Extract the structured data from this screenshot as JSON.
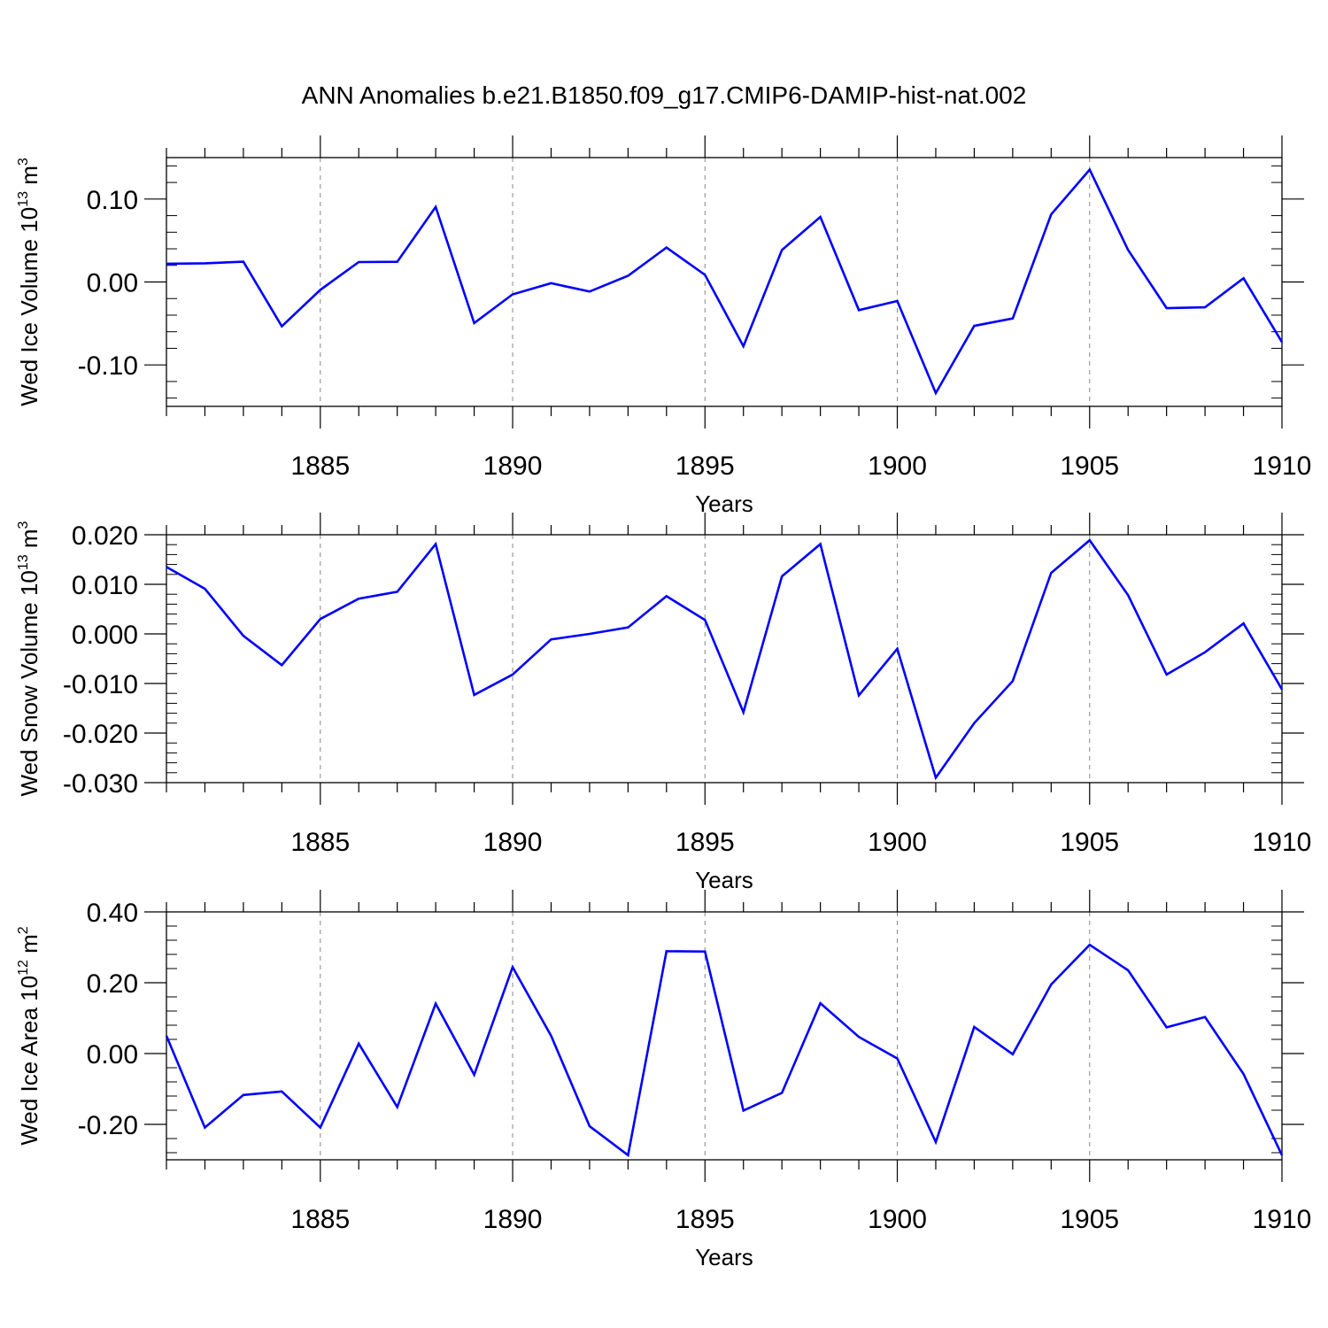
{
  "title": "ANN Anomalies b.e21.B1850.f09_g17.CMIP6-DAMIP-hist-nat.002",
  "line_color": "#0000ff",
  "chart_data": [
    {
      "type": "line",
      "ylabel_main": "Wed Ice Volume 10",
      "ylabel_exp": "13",
      "ylabel_unit": " m",
      "ylabel_unit_exp": "3",
      "xlabel": "Years",
      "xlim": [
        1881,
        1910
      ],
      "ylim": [
        -0.15,
        0.15
      ],
      "yticks": [
        -0.1,
        0.0,
        0.1
      ],
      "ytick_labels": [
        "-0.10",
        "0.00",
        "0.10"
      ],
      "xticks": [
        1885,
        1890,
        1895,
        1900,
        1905,
        1910
      ],
      "xtick_labels": [
        "1885",
        "1890",
        "1895",
        "1900",
        "1905",
        "1910"
      ],
      "x": [
        1881,
        1882,
        1883,
        1884,
        1885,
        1886,
        1887,
        1888,
        1889,
        1890,
        1891,
        1892,
        1893,
        1894,
        1895,
        1896,
        1897,
        1898,
        1899,
        1900,
        1901,
        1902,
        1903,
        1904,
        1905,
        1906,
        1907,
        1908,
        1909,
        1910
      ],
      "values": [
        0.022,
        0.0225,
        0.0245,
        -0.0535,
        -0.0095,
        0.024,
        0.0243,
        0.0905,
        -0.0495,
        -0.015,
        -0.0015,
        -0.0115,
        0.0075,
        0.0415,
        0.0085,
        -0.0775,
        0.0385,
        0.0785,
        -0.034,
        -0.023,
        -0.134,
        -0.053,
        -0.044,
        0.0815,
        0.1355,
        0.0385,
        -0.0315,
        -0.0305,
        0.0045,
        -0.0725
      ]
    },
    {
      "type": "line",
      "ylabel_main": "Wed Snow Volume 10",
      "ylabel_exp": "13",
      "ylabel_unit": " m",
      "ylabel_unit_exp": "3",
      "xlabel": "Years",
      "xlim": [
        1881,
        1910
      ],
      "ylim": [
        -0.03,
        0.02
      ],
      "yticks": [
        -0.03,
        -0.02,
        -0.01,
        0.0,
        0.01,
        0.02
      ],
      "ytick_labels": [
        "-0.030",
        "-0.020",
        "-0.010",
        "0.000",
        "0.010",
        "0.020"
      ],
      "xticks": [
        1885,
        1890,
        1895,
        1900,
        1905,
        1910
      ],
      "xtick_labels": [
        "1885",
        "1890",
        "1895",
        "1900",
        "1905",
        "1910"
      ],
      "x": [
        1881,
        1882,
        1883,
        1884,
        1885,
        1886,
        1887,
        1888,
        1889,
        1890,
        1891,
        1892,
        1893,
        1894,
        1895,
        1896,
        1897,
        1898,
        1899,
        1900,
        1901,
        1902,
        1903,
        1904,
        1905,
        1906,
        1907,
        1908,
        1909,
        1910
      ],
      "values": [
        0.0135,
        0.0091,
        -0.0004,
        -0.0063,
        0.003,
        0.0071,
        0.0085,
        0.0181,
        -0.0123,
        -0.0082,
        -0.0011,
        0.0,
        0.0013,
        0.0076,
        0.0028,
        -0.0158,
        0.0116,
        0.0181,
        -0.0124,
        -0.003,
        -0.029,
        -0.018,
        -0.0095,
        0.0123,
        0.0189,
        0.0078,
        -0.0082,
        -0.0037,
        0.0021,
        -0.0112
      ]
    },
    {
      "type": "line",
      "ylabel_main": "Wed Ice Area 10",
      "ylabel_exp": "12",
      "ylabel_unit": " m",
      "ylabel_unit_exp": "2",
      "xlabel": "Years",
      "xlim": [
        1881,
        1910
      ],
      "ylim": [
        -0.3,
        0.4
      ],
      "yticks": [
        -0.2,
        0.0,
        0.2,
        0.4
      ],
      "ytick_labels": [
        "-0.20",
        "0.00",
        "0.20",
        "0.40"
      ],
      "xticks": [
        1885,
        1890,
        1895,
        1900,
        1905,
        1910
      ],
      "xtick_labels": [
        "1885",
        "1890",
        "1895",
        "1900",
        "1905",
        "1910"
      ],
      "x": [
        1881,
        1882,
        1883,
        1884,
        1885,
        1886,
        1887,
        1888,
        1889,
        1890,
        1891,
        1892,
        1893,
        1894,
        1895,
        1896,
        1897,
        1898,
        1899,
        1900,
        1901,
        1902,
        1903,
        1904,
        1905,
        1906,
        1907,
        1908,
        1909,
        1910
      ],
      "values": [
        0.05,
        -0.209,
        -0.117,
        -0.107,
        -0.209,
        0.028,
        -0.151,
        0.141,
        -0.06,
        0.244,
        0.05,
        -0.205,
        -0.287,
        0.289,
        0.288,
        -0.161,
        -0.111,
        0.142,
        0.047,
        -0.014,
        -0.25,
        0.075,
        -0.002,
        0.195,
        0.307,
        0.235,
        0.074,
        0.103,
        -0.058,
        -0.287
      ]
    }
  ]
}
